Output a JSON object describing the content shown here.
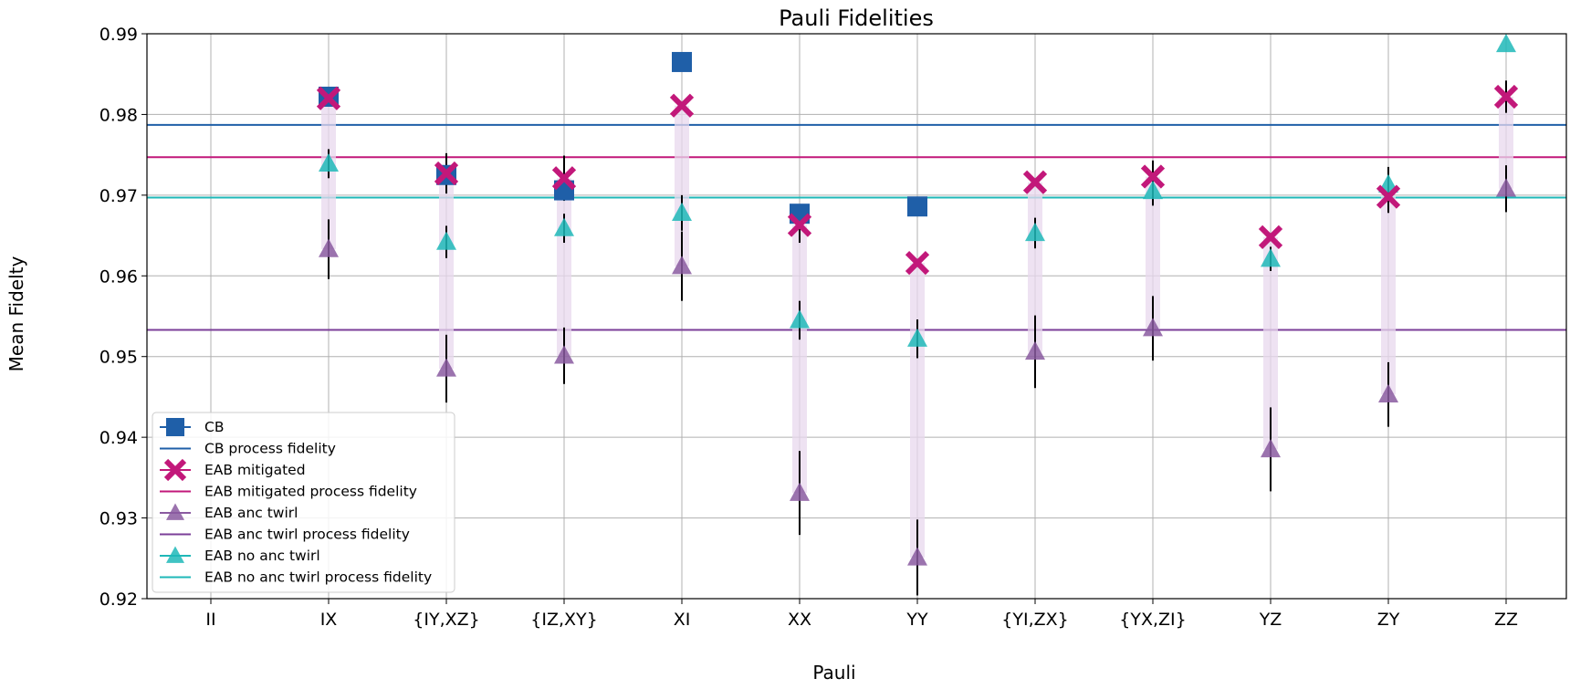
{
  "chart_data": {
    "type": "scatter",
    "title": "Pauli Fidelities",
    "xlabel": "Pauli",
    "ylabel": "Mean Fidelty",
    "categories": [
      "II",
      "IX",
      "{IY,XZ}",
      "{IZ,XY}",
      "XI",
      "XX",
      "YY",
      "{YI,ZX}",
      "{YX,ZI}",
      "YZ",
      "ZY",
      "ZZ"
    ],
    "ylim": [
      0.92,
      0.99
    ],
    "yticks": [
      "0.92",
      "0.93",
      "0.94",
      "0.95",
      "0.96",
      "0.97",
      "0.98",
      "0.99"
    ],
    "grid": true,
    "legend_position": "bottom-left",
    "series": [
      {
        "name": "CB",
        "marker": "square",
        "color": "#1f5fa8",
        "values": [
          null,
          0.9822,
          0.9725,
          0.9706,
          0.9865,
          0.9677,
          0.9686,
          null,
          null,
          null,
          null,
          null
        ]
      },
      {
        "name": "EAB mitigated",
        "marker": "x",
        "color": "#c2187a",
        "values": [
          null,
          0.982,
          0.9727,
          0.9721,
          0.9811,
          0.9663,
          0.9616,
          0.9716,
          0.9723,
          0.9648,
          0.9698,
          0.9822
        ],
        "errors": [
          null,
          null,
          0.0025,
          0.0028,
          null,
          0.0022,
          null,
          null,
          0.002,
          null,
          0.002,
          0.002
        ]
      },
      {
        "name": "EAB anc twirl",
        "marker": "triangle",
        "color": "#8a5aa0",
        "values": [
          null,
          0.9633,
          0.9485,
          0.9501,
          0.9612,
          0.9331,
          0.9251,
          0.9506,
          0.9535,
          0.9385,
          0.9453,
          0.9708
        ],
        "errors": [
          null,
          0.0037,
          0.0042,
          0.0035,
          0.0043,
          0.0052,
          0.0047,
          0.0045,
          0.004,
          0.0052,
          0.004,
          0.0029
        ]
      },
      {
        "name": "EAB no anc twirl",
        "marker": "triangle",
        "color": "#1fb8b8",
        "values": [
          null,
          0.9739,
          0.9642,
          0.9659,
          0.9678,
          0.9545,
          0.9522,
          0.9653,
          0.9705,
          0.9621,
          0.9713,
          0.9887
        ],
        "errors": [
          null,
          0.0018,
          0.002,
          0.0018,
          0.0022,
          0.0024,
          0.0024,
          0.0019,
          0.0018,
          0.0015,
          0.0022,
          null
        ]
      }
    ],
    "process_fidelities": [
      {
        "name": "CB process fidelity",
        "value": 0.9787,
        "color": "#1f5fa8"
      },
      {
        "name": "EAB mitigated process fidelity",
        "value": 0.9747,
        "color": "#c2187a"
      },
      {
        "name": "EAB anc twirl process fidelity",
        "value": 0.9533,
        "color": "#7b3f98"
      },
      {
        "name": "EAB no anc twirl process fidelity",
        "value": 0.9697,
        "color": "#1fb8b8"
      }
    ],
    "legend": [
      "CB",
      "CB process fidelity",
      "EAB mitigated",
      "EAB mitigated process fidelity",
      "EAB anc twirl",
      "EAB anc twirl process fidelity",
      "EAB no anc twirl",
      "EAB no anc twirl process fidelity"
    ]
  }
}
